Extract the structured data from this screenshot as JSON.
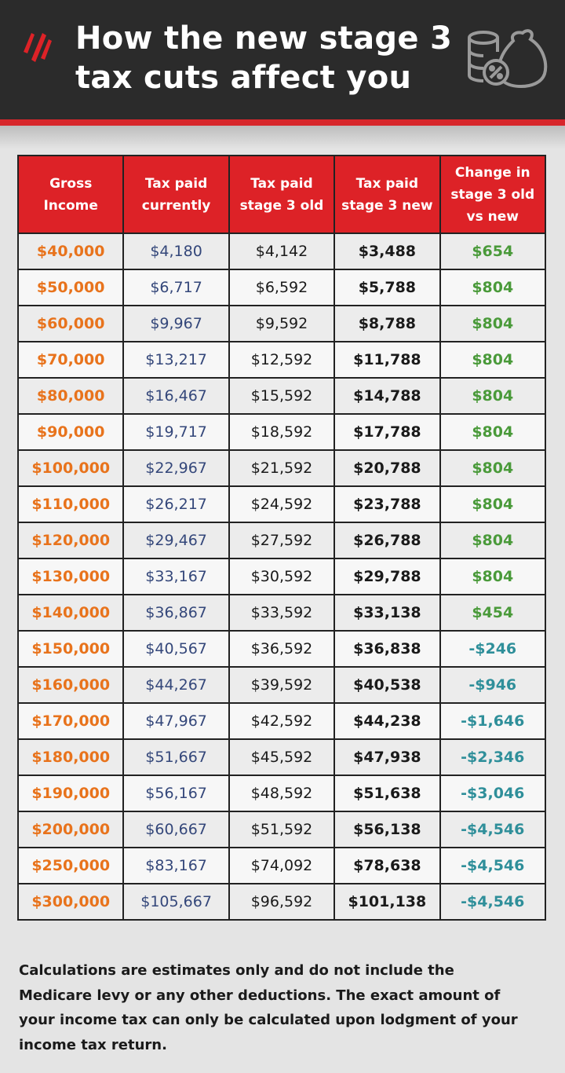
{
  "header": {
    "title": [
      "How the new stage 3",
      "tax cuts affect you"
    ]
  },
  "table": {
    "headers": [
      [
        "Gross",
        "Income"
      ],
      [
        "Tax paid",
        "currently"
      ],
      [
        "Tax paid",
        "stage 3 old"
      ],
      [
        "Tax paid",
        "stage 3 new"
      ],
      [
        "Change in",
        "stage 3 old",
        "vs new"
      ]
    ],
    "rows": [
      [
        "$40,000",
        "$4,180",
        "$4,142",
        "$3,488",
        "$654"
      ],
      [
        "$50,000",
        "$6,717",
        "$6,592",
        "$5,788",
        "$804"
      ],
      [
        "$60,000",
        "$9,967",
        "$9,592",
        "$8,788",
        "$804"
      ],
      [
        "$70,000",
        "$13,217",
        "$12,592",
        "$11,788",
        "$804"
      ],
      [
        "$80,000",
        "$16,467",
        "$15,592",
        "$14,788",
        "$804"
      ],
      [
        "$90,000",
        "$19,717",
        "$18,592",
        "$17,788",
        "$804"
      ],
      [
        "$100,000",
        "$22,967",
        "$21,592",
        "$20,788",
        "$804"
      ],
      [
        "$110,000",
        "$26,217",
        "$24,592",
        "$23,788",
        "$804"
      ],
      [
        "$120,000",
        "$29,467",
        "$27,592",
        "$26,788",
        "$804"
      ],
      [
        "$130,000",
        "$33,167",
        "$30,592",
        "$29,788",
        "$804"
      ],
      [
        "$140,000",
        "$36,867",
        "$33,592",
        "$33,138",
        "$454"
      ],
      [
        "$150,000",
        "$40,567",
        "$36,592",
        "$36,838",
        "-$246"
      ],
      [
        "$160,000",
        "$44,267",
        "$39,592",
        "$40,538",
        "-$946"
      ],
      [
        "$170,000",
        "$47,967",
        "$42,592",
        "$44,238",
        "-$1,646"
      ],
      [
        "$180,000",
        "$51,667",
        "$45,592",
        "$47,938",
        "-$2,346"
      ],
      [
        "$190,000",
        "$56,167",
        "$48,592",
        "$51,638",
        "-$3,046"
      ],
      [
        "$200,000",
        "$60,667",
        "$51,592",
        "$56,138",
        "-$4,546"
      ],
      [
        "$250,000",
        "$83,167",
        "$74,092",
        "$78,638",
        "-$4,546"
      ],
      [
        "$300,000",
        "$105,667",
        "$96,592",
        "$101,138",
        "-$4,546"
      ]
    ]
  },
  "footnote": [
    "Calculations are estimates only and do not include the",
    "Medicare levy or any other deductions.  The exact amount of",
    "your income tax can only be calculated upon lodgment of your",
    "income tax return."
  ]
}
